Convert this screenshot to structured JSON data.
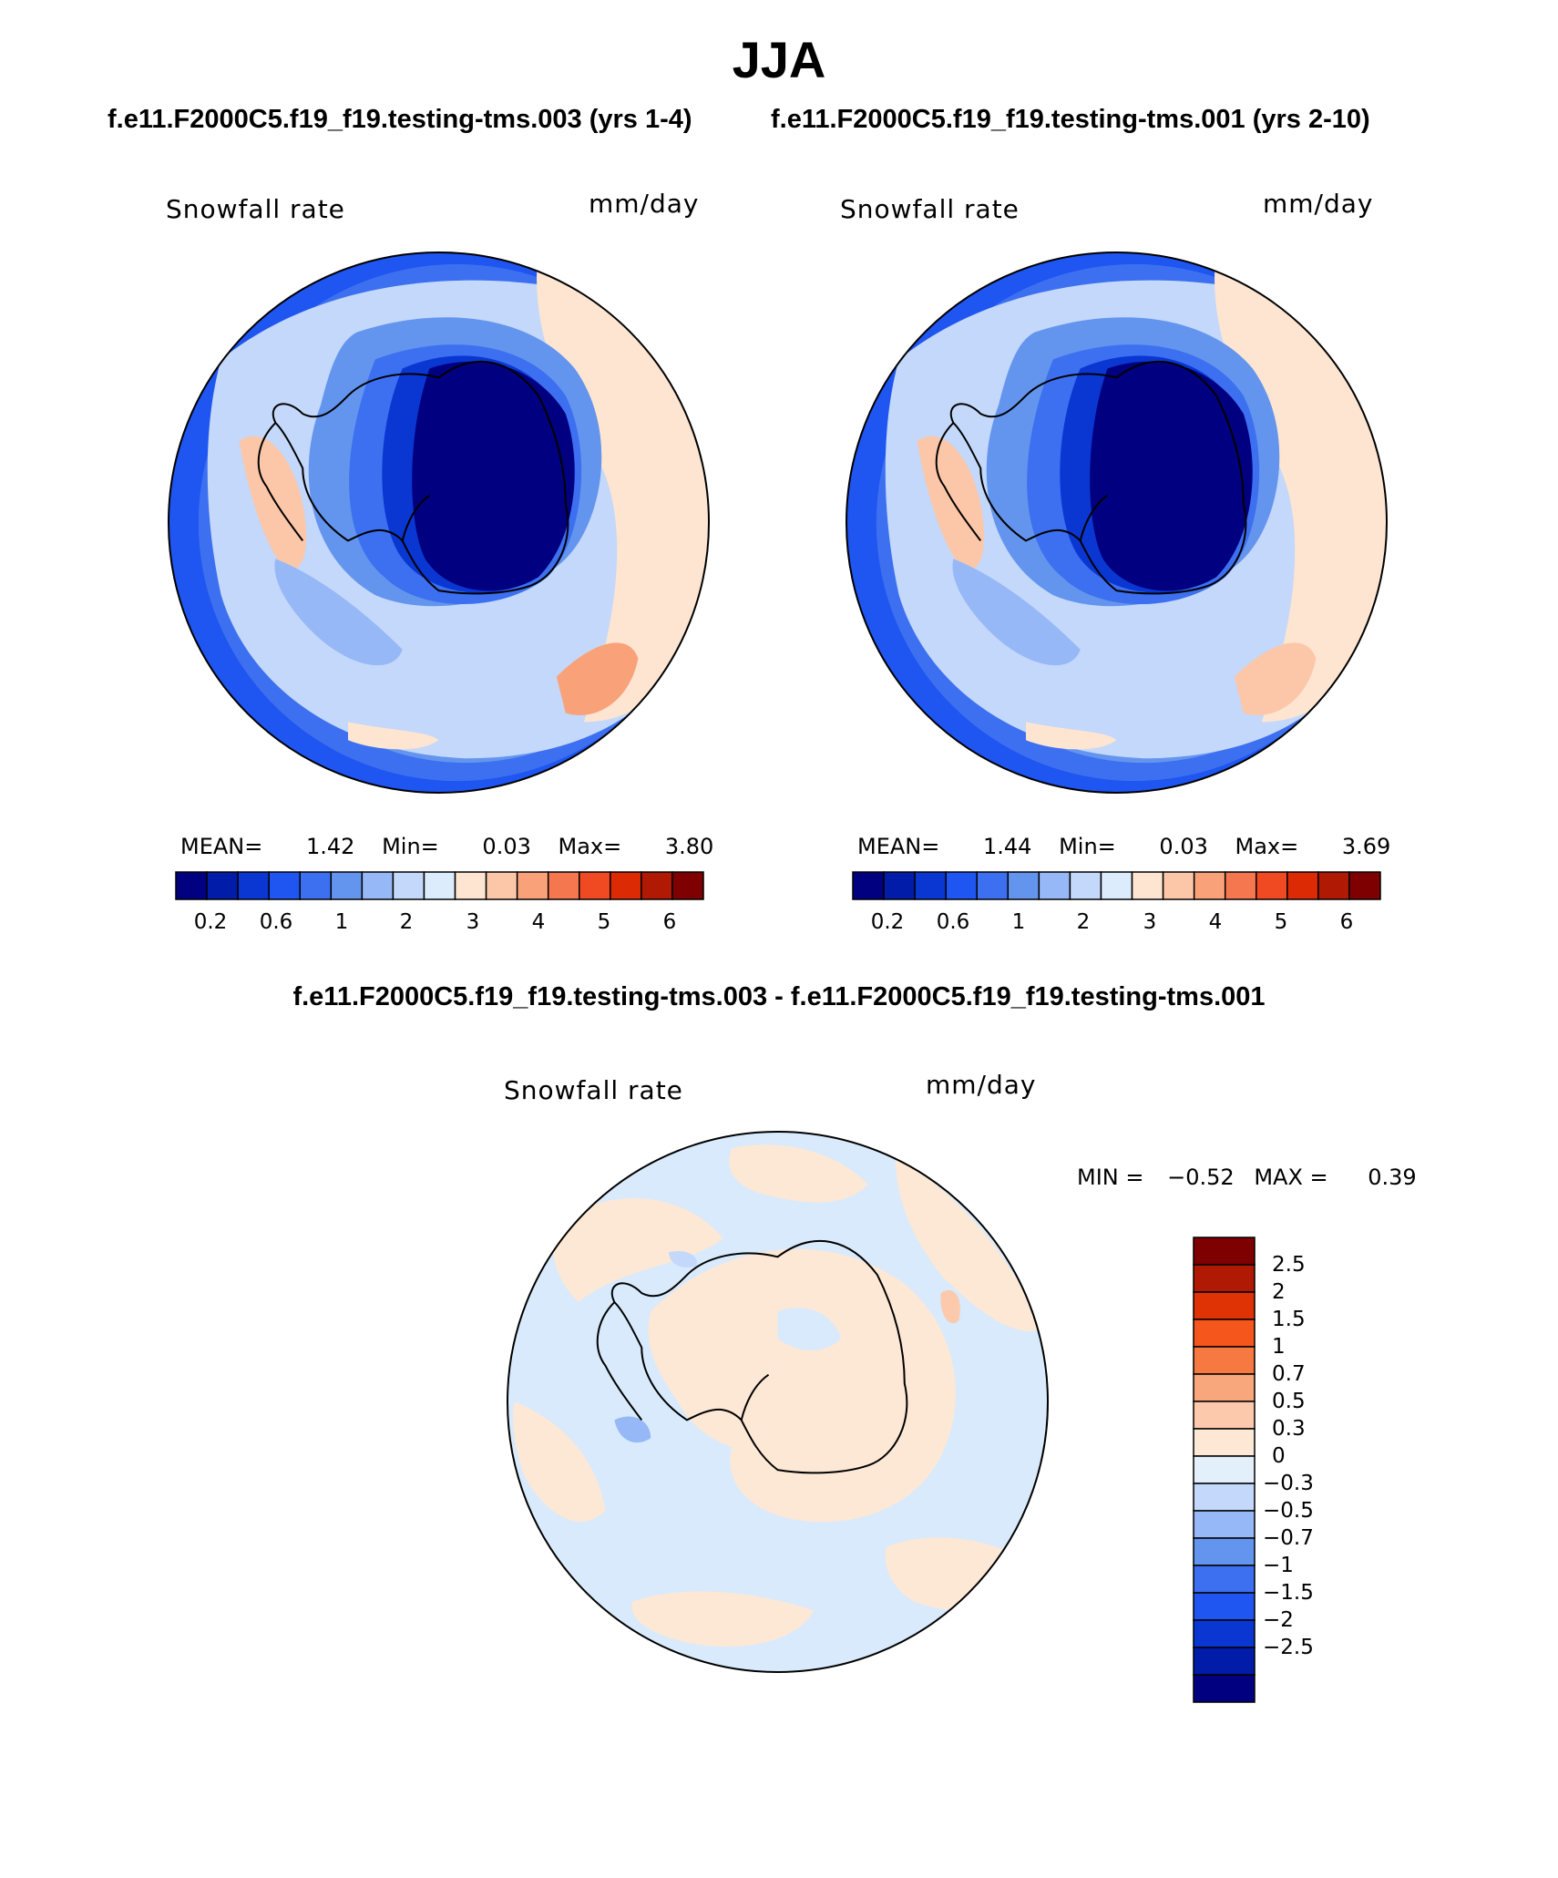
{
  "header": {
    "title": "JJA",
    "case_left": "f.e11.F2000C5.f19_f19.testing-tms.003 (yrs 1-4)",
    "case_right": "f.e11.F2000C5.f19_f19.testing-tms.001 (yrs 2-10)",
    "diff_title": "f.e11.F2000C5.f19_f19.testing-tms.003 - f.e11.F2000C5.f19_f19.testing-tms.001"
  },
  "panels": [
    {
      "variable": "Snowfall rate",
      "units": "mm/day",
      "mean_label": "MEAN=",
      "mean": "1.42",
      "min_label": "Min=",
      "min": "0.03",
      "max_label": "Max=",
      "max": "3.80"
    },
    {
      "variable": "Snowfall rate",
      "units": "mm/day",
      "mean_label": "MEAN=",
      "mean": "1.44",
      "min_label": "Min=",
      "min": "0.03",
      "max_label": "Max=",
      "max": "3.69"
    }
  ],
  "diff_panel": {
    "variable": "Snowfall rate",
    "units": "mm/day",
    "min_label": "MIN =",
    "min": "−0.52",
    "max_label": "MAX =",
    "max": "0.39"
  },
  "colorbar_main": {
    "colors": [
      "#000080",
      "#001ca8",
      "#0a37d2",
      "#1f55f0",
      "#3d70f0",
      "#6495ee",
      "#97b8f6",
      "#c3d8fa",
      "#dcecfc",
      "#fde5d2",
      "#fcc7a8",
      "#f9a27a",
      "#f5774f",
      "#f04a22",
      "#dc2a05",
      "#b01a04",
      "#7f0000"
    ],
    "tick_labels": [
      "0.2",
      "0.6",
      "1",
      "2",
      "3",
      "4",
      "5",
      "6"
    ]
  },
  "colorbar_diff": {
    "colors": [
      "#7f0000",
      "#b01a04",
      "#e03305",
      "#f5561c",
      "#f57940",
      "#f8a67b",
      "#fcc9ac",
      "#fde8d6",
      "#e3f0fc",
      "#c3d8fa",
      "#97b8f6",
      "#6495ee",
      "#3d70f0",
      "#1f55f0",
      "#0a37d2",
      "#001ca8",
      "#000080"
    ],
    "tick_labels": [
      "2.5",
      "2",
      "1.5",
      "1",
      "0.7",
      "0.5",
      "0.3",
      "0",
      "−0.3",
      "−0.5",
      "−0.7",
      "−1",
      "−1.5",
      "−2",
      "−2.5"
    ]
  }
}
